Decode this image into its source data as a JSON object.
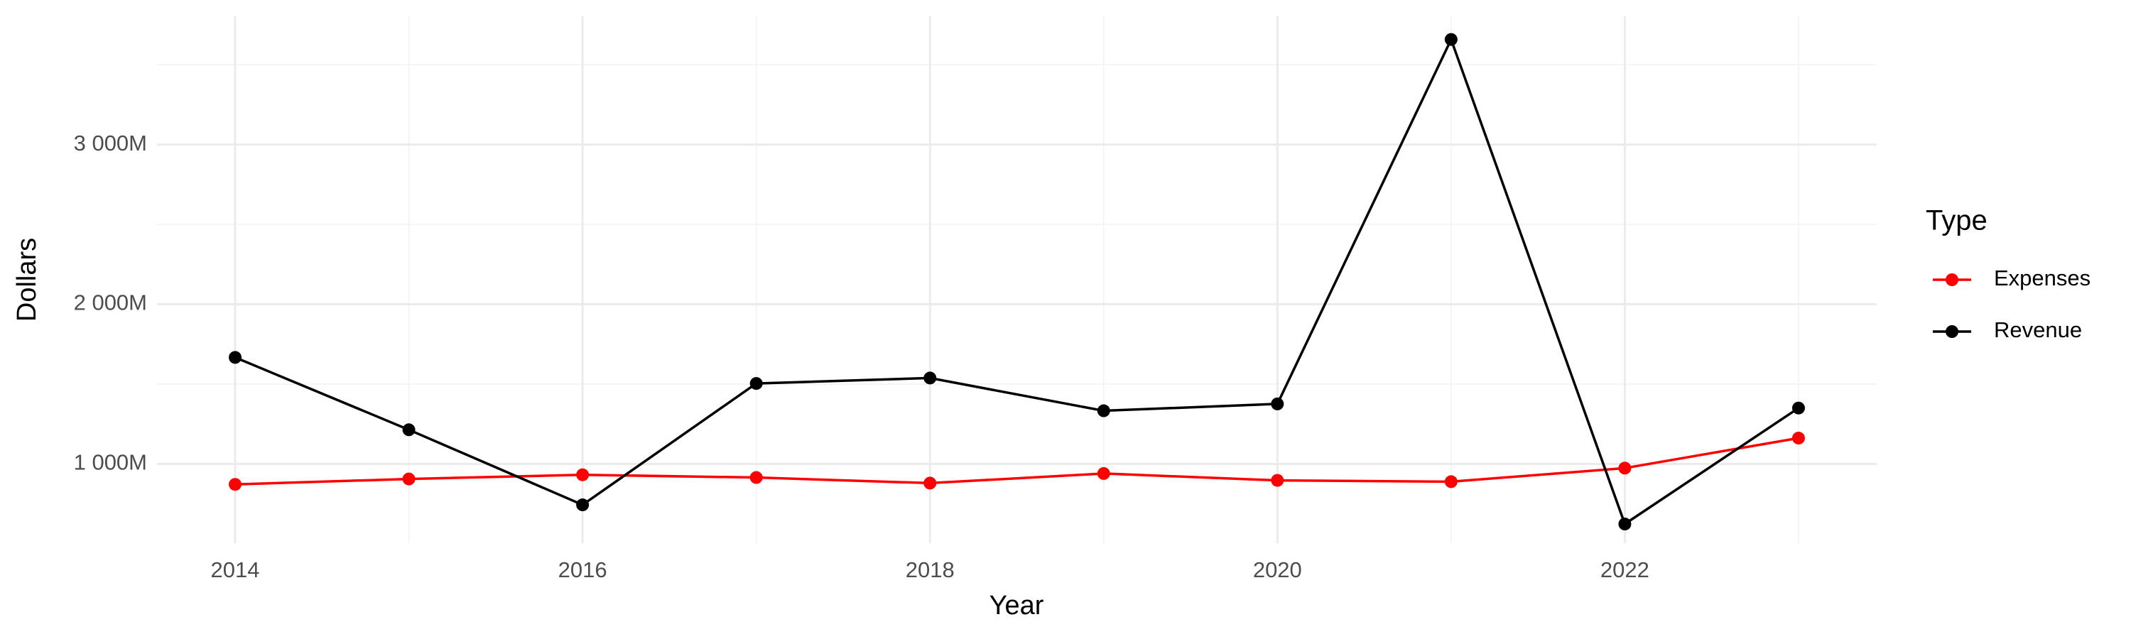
{
  "chart_data": {
    "type": "line",
    "x_label": "Year",
    "y_label": "Dollars",
    "x": [
      2014,
      2015,
      2016,
      2017,
      2018,
      2019,
      2020,
      2021,
      2022,
      2023
    ],
    "series": [
      {
        "name": "Expenses",
        "color": "#ff0000",
        "values": [
          872,
          906,
          932,
          915,
          880,
          940,
          897,
          889,
          974,
          1162
        ]
      },
      {
        "name": "Revenue",
        "color": "#000000",
        "values": [
          1667,
          1214,
          744,
          1504,
          1538,
          1333,
          1376,
          3658,
          624,
          1350
        ]
      }
    ],
    "xlim": [
      2013.55,
      2023.45
    ],
    "xticks": [
      2014,
      2016,
      2018,
      2020,
      2022
    ],
    "ylim": [
      504,
      3803
    ],
    "yticks": [
      {
        "value": 1000,
        "label": "1 000M"
      },
      {
        "value": 2000,
        "label": "2 000M"
      },
      {
        "value": 3000,
        "label": "3 000M"
      }
    ],
    "grid": true,
    "legend": {
      "title": "Type",
      "position": "right"
    }
  }
}
